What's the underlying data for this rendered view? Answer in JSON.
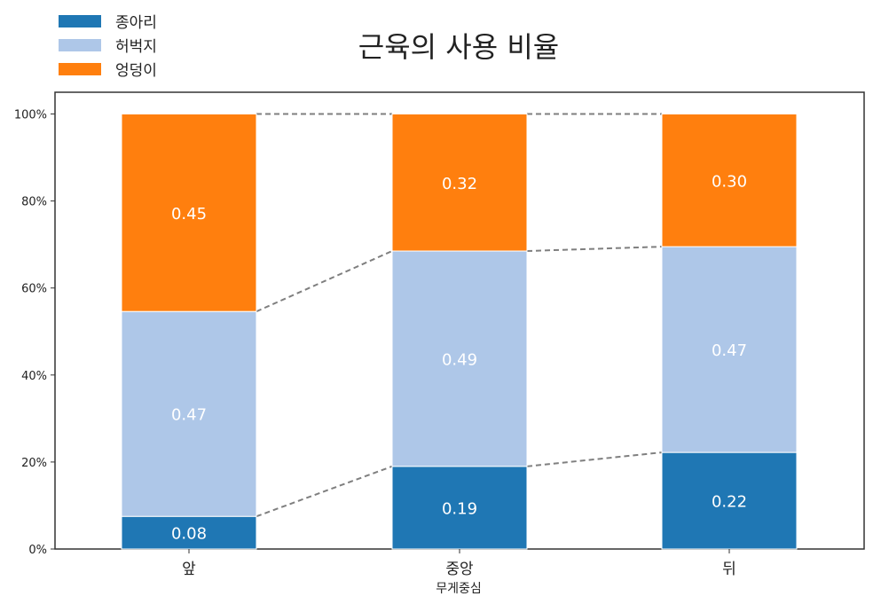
{
  "chart_data": {
    "type": "bar",
    "stacked": true,
    "normalized": true,
    "title": "근육의 사용 비율",
    "xlabel": "무게중심",
    "ylabel": "",
    "categories": [
      "앞",
      "중앙",
      "뒤"
    ],
    "series": [
      {
        "name": "종아리",
        "color": "#1f77b4",
        "values": [
          0.075,
          0.19,
          0.222
        ],
        "labels": [
          "0.08",
          "0.19",
          "0.22"
        ]
      },
      {
        "name": "허벅지",
        "color": "#aec7e8",
        "values": [
          0.471,
          0.495,
          0.473
        ],
        "labels": [
          "0.47",
          "0.49",
          "0.47"
        ]
      },
      {
        "name": "엉덩이",
        "color": "#ff7f0e",
        "values": [
          0.454,
          0.315,
          0.305
        ],
        "labels": [
          "0.45",
          "0.32",
          "0.30"
        ]
      }
    ],
    "ylim": [
      0,
      1.05
    ],
    "yticks": [
      0,
      0.2,
      0.4,
      0.6,
      0.8,
      1.0
    ],
    "ytick_labels": [
      "0%",
      "20%",
      "40%",
      "60%",
      "80%",
      "100%"
    ],
    "connector_lines": "dashed",
    "legend_position": "top-left",
    "grid": false
  }
}
